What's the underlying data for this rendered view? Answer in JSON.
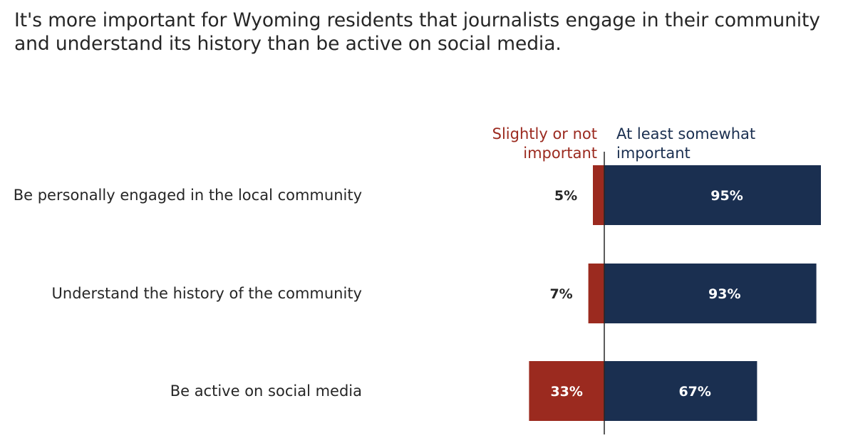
{
  "title": "It's more important for Wyoming residents that journalists engage in their community and understand its history than be active on social media.",
  "chart_data": {
    "type": "bar",
    "orientation": "horizontal",
    "stacked": "diverging",
    "categories": [
      "Be personally engaged in the local community",
      "Understand the history of the community",
      "Be active on social media"
    ],
    "series": [
      {
        "name": "Slightly or not important",
        "legend_lines": [
          "Slightly or not",
          "important"
        ],
        "values": [
          5,
          7,
          33
        ],
        "labels": [
          "5%",
          "7%",
          "33%"
        ],
        "color": "#9B2A1F"
      },
      {
        "name": "At least somewhat important",
        "legend_lines": [
          "At least somewhat",
          "important"
        ],
        "values": [
          95,
          93,
          67
        ],
        "labels": [
          "95%",
          "93%",
          "67%"
        ],
        "color": "#1A2F50"
      }
    ],
    "unit": "%",
    "legend_placement": "top",
    "grid": false
  }
}
